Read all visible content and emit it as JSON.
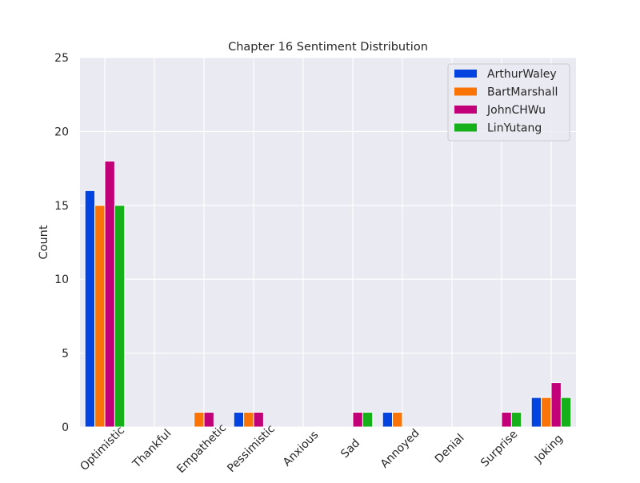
{
  "chart_data": {
    "type": "bar",
    "title": "Chapter 16 Sentiment Distribution",
    "xlabel": "",
    "ylabel": "Count",
    "ylim": [
      0,
      25
    ],
    "yticks": [
      0,
      5,
      10,
      15,
      20,
      25
    ],
    "grid": true,
    "legend_position": "top-right",
    "background_color": "#eaeaf2",
    "grid_color": "#ffffff",
    "categories": [
      "Optimistic",
      "Thankful",
      "Empathetic",
      "Pessimistic",
      "Anxious",
      "Sad",
      "Annoyed",
      "Denial",
      "Surprise",
      "Joking"
    ],
    "series": [
      {
        "name": "ArthurWaley",
        "color": "#0343df",
        "values": [
          16,
          0,
          0,
          1,
          0,
          0,
          1,
          0,
          0,
          2
        ]
      },
      {
        "name": "BartMarshall",
        "color": "#f97306",
        "values": [
          15,
          0,
          1,
          1,
          0,
          0,
          1,
          0,
          0,
          2
        ]
      },
      {
        "name": "JohnCHWu",
        "color": "#c20078",
        "values": [
          18,
          0,
          1,
          1,
          0,
          1,
          0,
          0,
          1,
          3
        ]
      },
      {
        "name": "LinYutang",
        "color": "#15b01a",
        "values": [
          15,
          0,
          0,
          0,
          0,
          1,
          0,
          0,
          1,
          2
        ]
      }
    ]
  }
}
